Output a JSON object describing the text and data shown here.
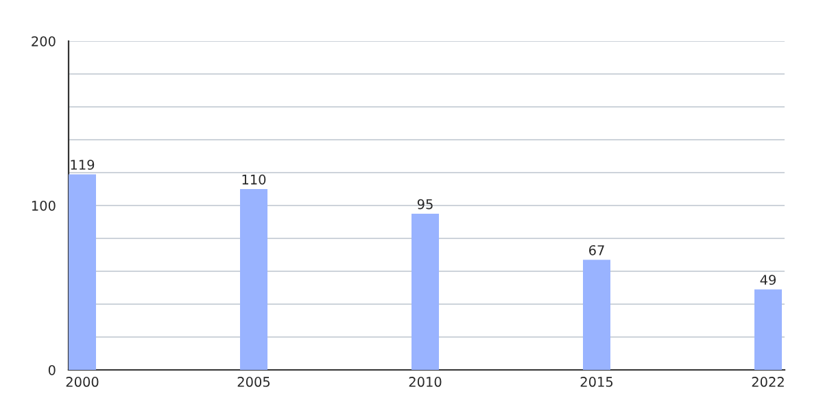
{
  "chart_data": {
    "type": "bar",
    "categories": [
      "2000",
      "2005",
      "2010",
      "2015",
      "2022"
    ],
    "values": [
      119,
      110,
      95,
      67,
      49
    ],
    "color": "#99b3ff",
    "ylim": [
      0,
      200
    ],
    "yticks": [
      0,
      {
        "value": 20,
        "label": null
      },
      {
        "value": 40,
        "label": null
      },
      {
        "value": 60,
        "label": null
      },
      {
        "value": 80,
        "label": null
      },
      100,
      {
        "value": 120,
        "label": null
      },
      {
        "value": 140,
        "label": null
      },
      {
        "value": 160,
        "label": null
      },
      {
        "value": 180,
        "label": null
      },
      200
    ],
    "grid": "y",
    "data_labels": true
  }
}
